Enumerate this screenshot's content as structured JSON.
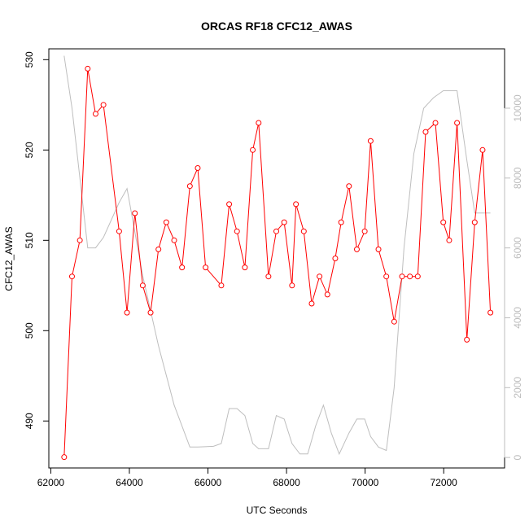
{
  "chart_data": {
    "type": "line",
    "title": "ORCAS RF18 CFC12_AWAS",
    "xlabel": "UTC Seconds",
    "ylabel": "CFC12_AWAS",
    "xlim": [
      61950,
      73550
    ],
    "ylim": [
      484.8,
      531.2
    ],
    "y2lim": [
      -300,
      11700
    ],
    "x_ticks": [
      62000,
      64000,
      66000,
      68000,
      70000,
      72000
    ],
    "y_ticks": [
      490,
      500,
      510,
      520,
      530
    ],
    "y2_ticks": [
      0,
      2000,
      4000,
      6000,
      8000,
      10000
    ],
    "grid": false,
    "legend": "none",
    "colors": {
      "primary": "#ff0000",
      "secondary": "#bebebe",
      "axis": "#000000",
      "right_axis": "#bebebe"
    },
    "series": [
      {
        "color": "#ff0000",
        "axis": "left",
        "markers": true,
        "x": [
          62340,
          62540,
          62740,
          62940,
          63140,
          63340,
          63740,
          63940,
          64140,
          64340,
          64540,
          64740,
          64940,
          65140,
          65340,
          65540,
          65740,
          65940,
          66340,
          66540,
          66740,
          66940,
          67140,
          67290,
          67540,
          67740,
          67940,
          68140,
          68240,
          68440,
          68640,
          68840,
          69040,
          69240,
          69390,
          69590,
          69790,
          69990,
          70140,
          70340,
          70540,
          70740,
          70940,
          71140,
          71340,
          71540,
          71790,
          71990,
          72140,
          72340,
          72590,
          72790,
          72990,
          73190
        ],
        "y": [
          486,
          506,
          510,
          529,
          524,
          525,
          511,
          502,
          513,
          505,
          502,
          509,
          512,
          510,
          507,
          516,
          518,
          507,
          505,
          514,
          511,
          507,
          520,
          523,
          506,
          511,
          512,
          505,
          514,
          511,
          503,
          506,
          504,
          508,
          512,
          516,
          509,
          511,
          521,
          509,
          506,
          501,
          506,
          506,
          506,
          522,
          523,
          512,
          510,
          523,
          499,
          512,
          520,
          502
        ]
      },
      {
        "color": "#bebebe",
        "axis": "right",
        "markers": false,
        "x": [
          62340,
          62540,
          62940,
          63140,
          63340,
          63740,
          63940,
          64340,
          64740,
          65140,
          65540,
          65740,
          66140,
          66340,
          66540,
          66740,
          66940,
          67140,
          67290,
          67540,
          67740,
          67940,
          68140,
          68340,
          68540,
          68740,
          68940,
          69140,
          69340,
          69590,
          69790,
          69990,
          70140,
          70340,
          70540,
          70740,
          70990,
          71240,
          71490,
          71740,
          71990,
          72340,
          72590,
          72790,
          73190
        ],
        "y": [
          11500,
          10000,
          6000,
          6000,
          6300,
          7300,
          7700,
          5200,
          3200,
          1500,
          300,
          300,
          320,
          400,
          1400,
          1400,
          1200,
          400,
          250,
          250,
          1200,
          1100,
          400,
          100,
          100,
          900,
          1500,
          700,
          100,
          700,
          1100,
          1100,
          600,
          300,
          200,
          2000,
          6000,
          8700,
          10000,
          10300,
          10500,
          10500,
          8500,
          7000,
          7000
        ]
      }
    ]
  }
}
